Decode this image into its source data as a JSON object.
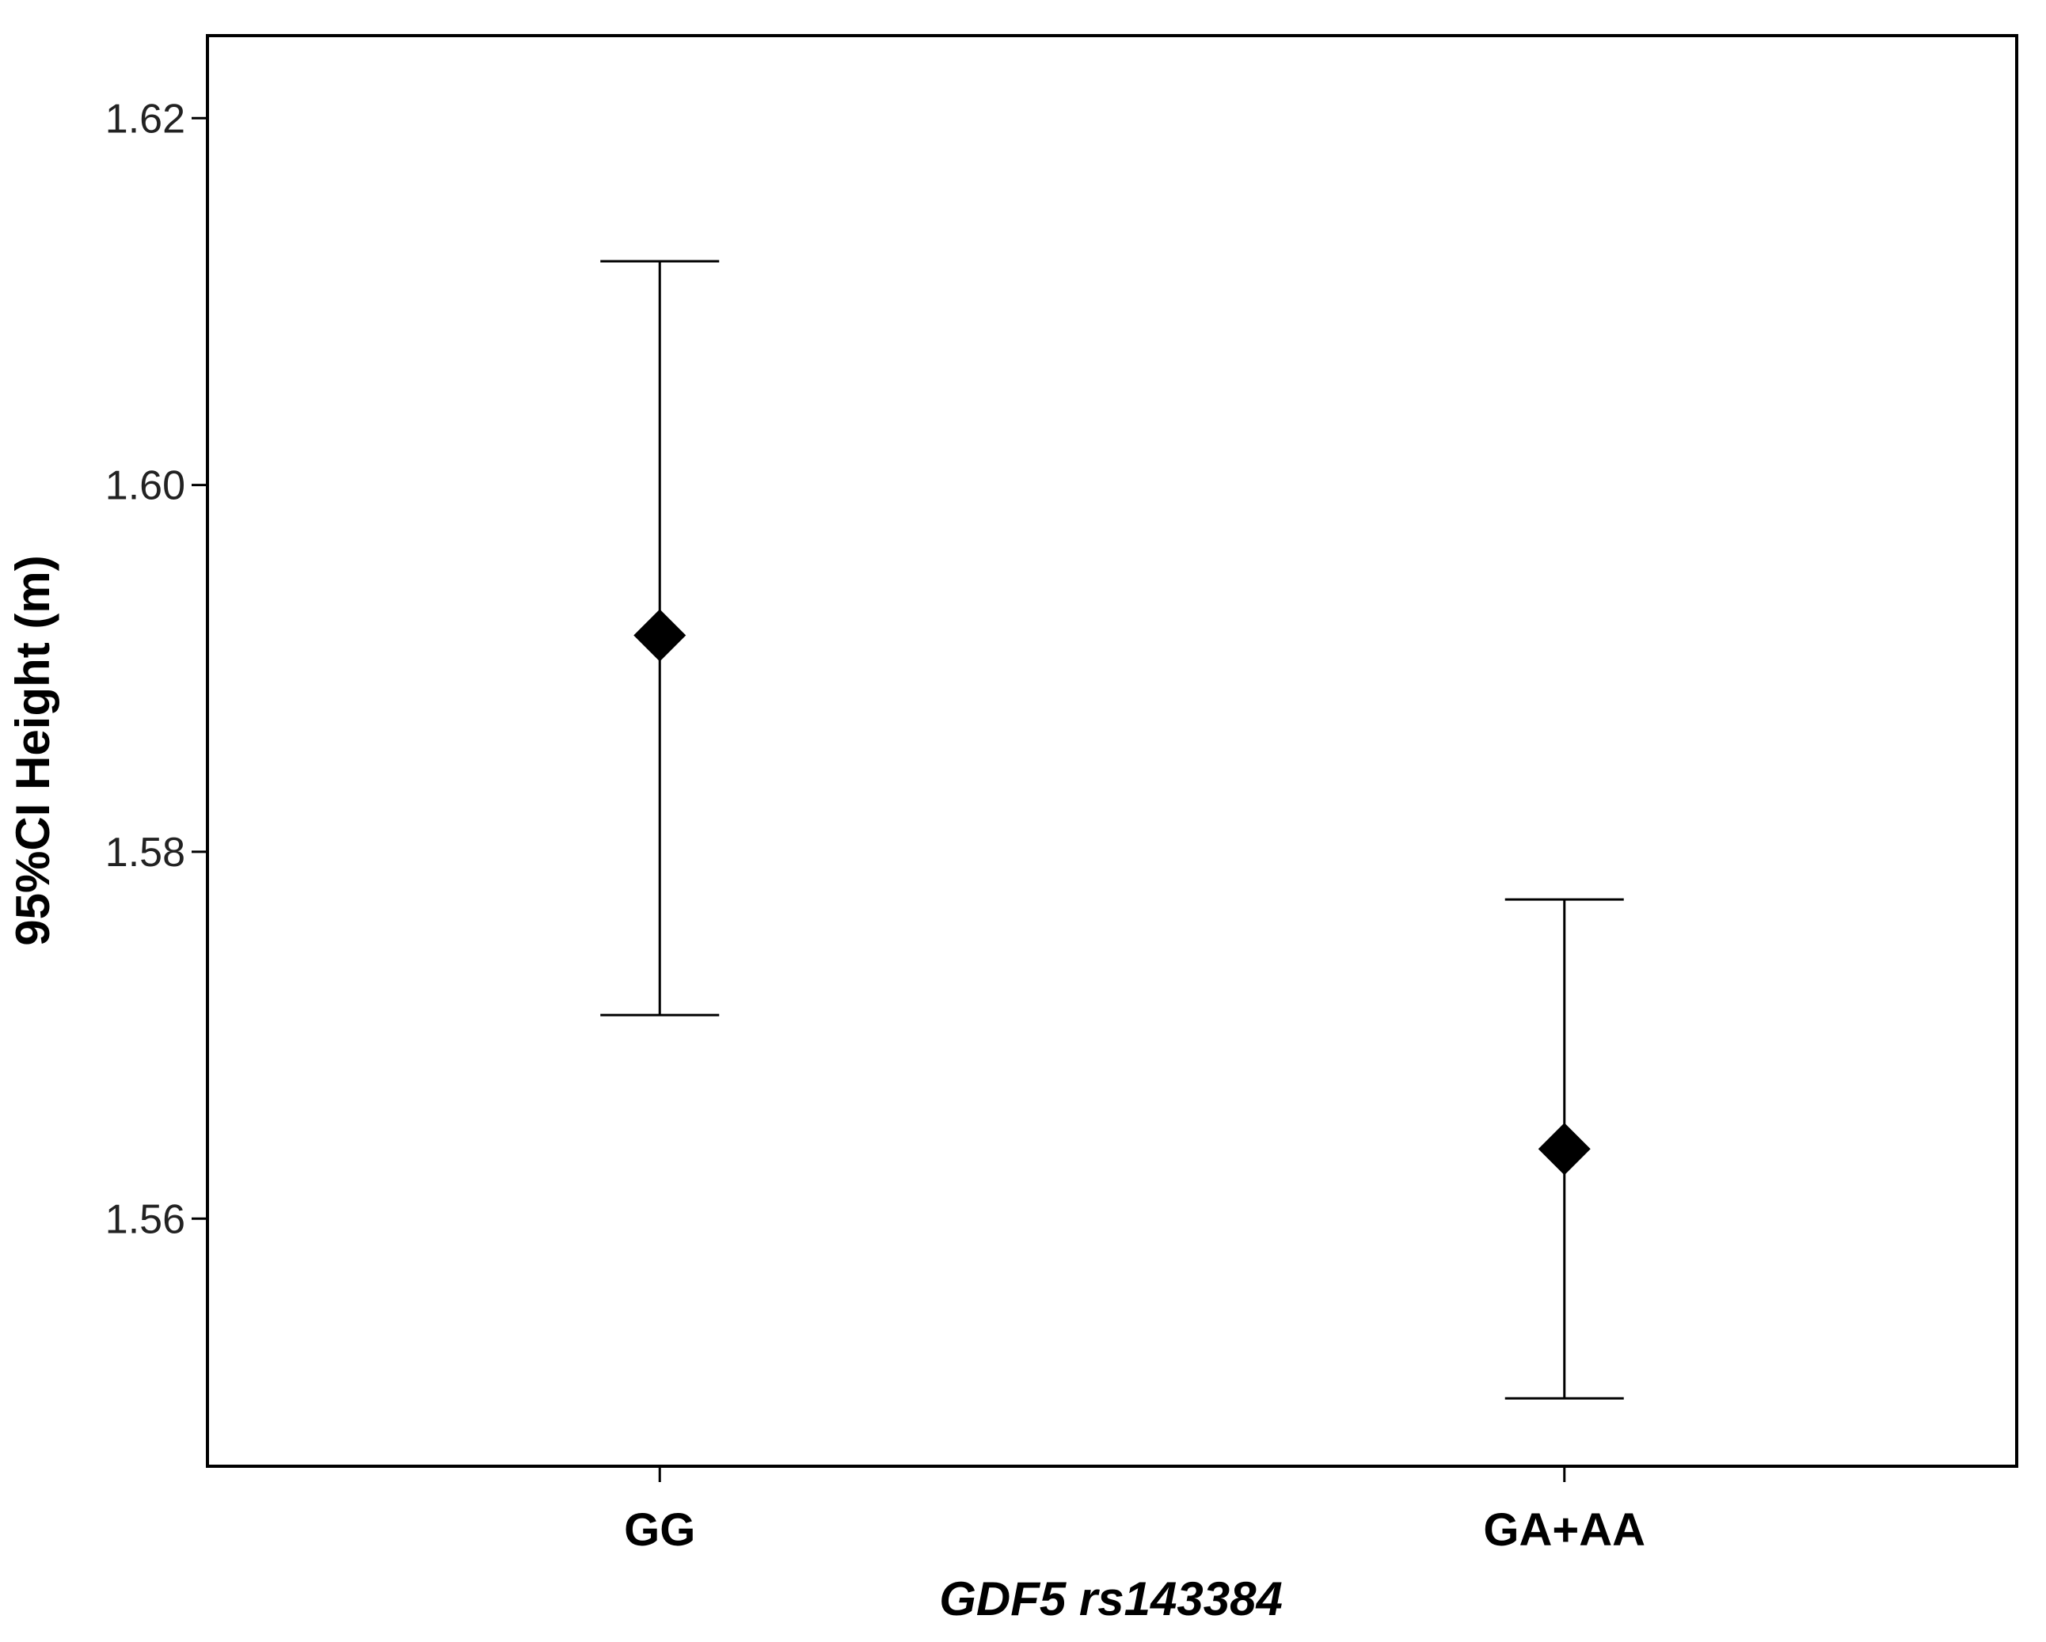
{
  "chart_data": {
    "type": "errorbar",
    "xlabel": "GDF5 rs143384",
    "ylabel": "95%CI Height (m)",
    "categories": [
      "GG",
      "GA+AA"
    ],
    "series": [
      {
        "mean": [
          1.5918,
          1.5638
        ],
        "ci_lower": [
          1.5711,
          1.5502
        ],
        "ci_upper": [
          1.6122,
          1.5774
        ]
      }
    ],
    "yticks": [
      "1.56",
      "1.58",
      "1.60",
      "1.62"
    ],
    "ylim": [
      1.5465,
      1.6245
    ],
    "marker": "diamond",
    "grid": false,
    "legend": "none",
    "colors": {
      "mark": "#000000",
      "frame": "#000000"
    }
  }
}
